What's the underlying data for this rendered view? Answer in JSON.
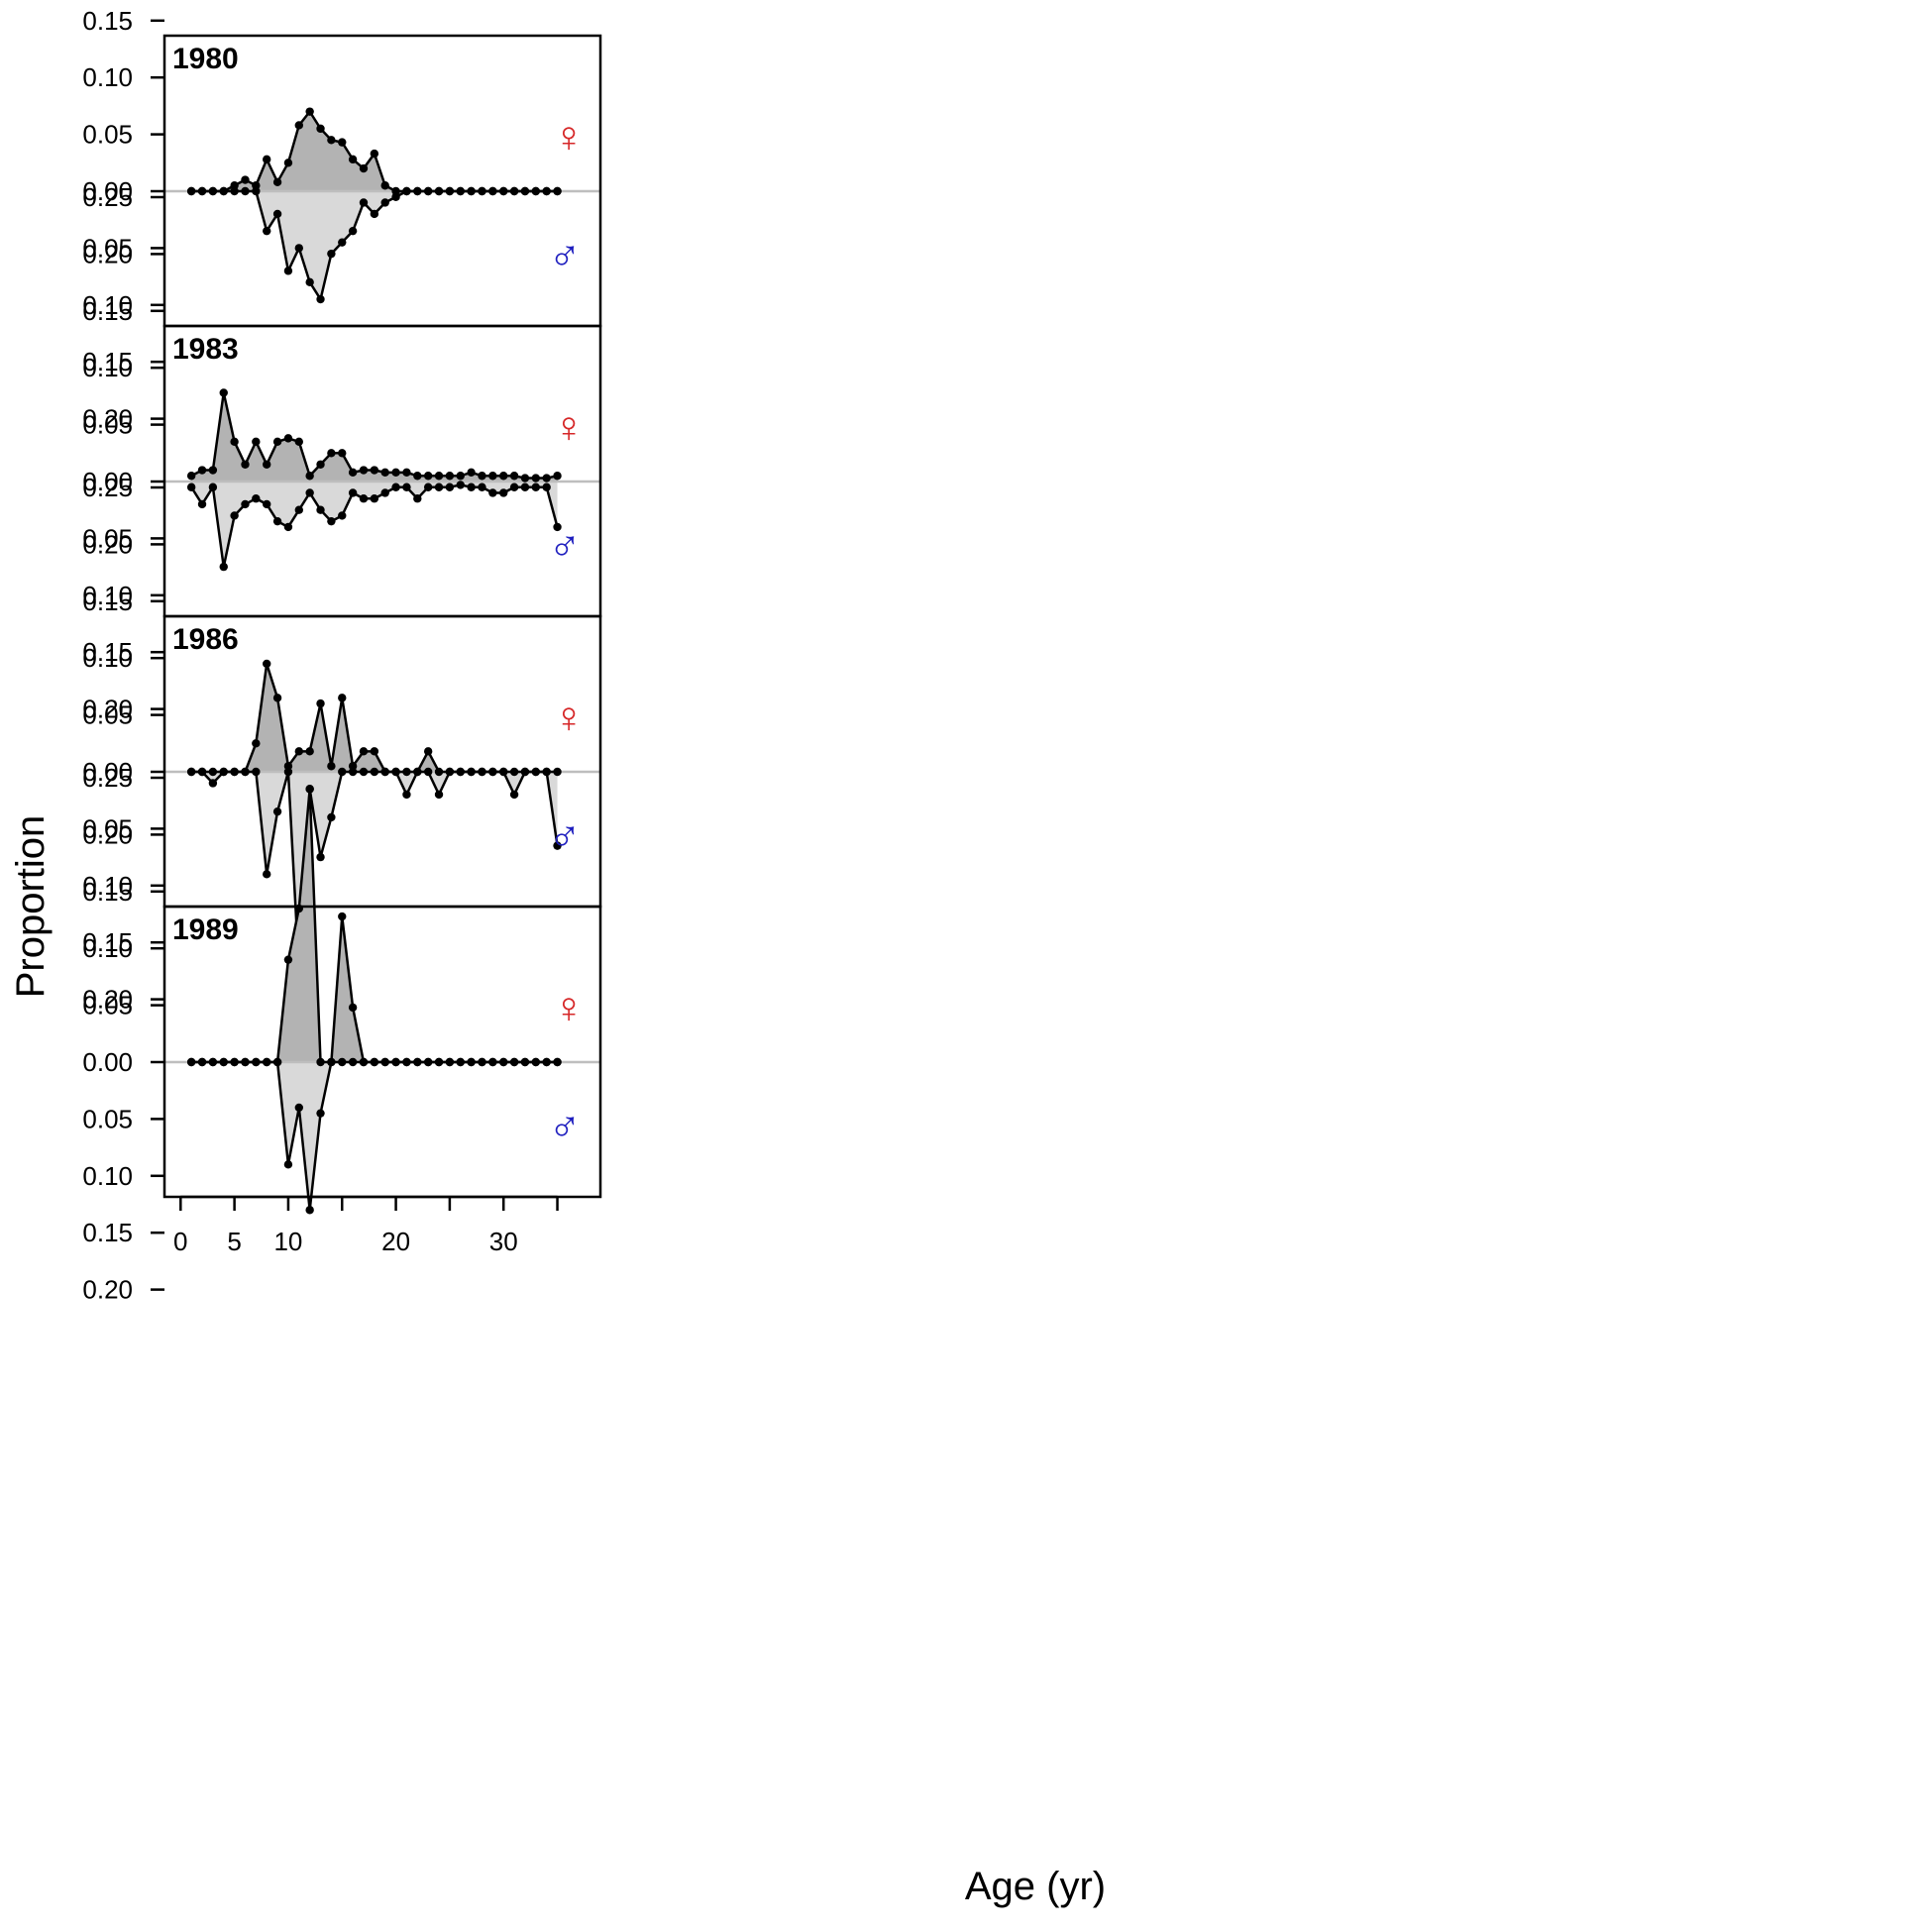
{
  "chart_data": {
    "type": "area",
    "layout": "stacked-panels, mirrored female (up) / male (down)",
    "xlabel": "Age (yr)",
    "ylabel": "Proportion",
    "x_ticks": [
      0,
      5,
      10,
      20,
      30
    ],
    "x_tick_labels": [
      "0",
      "5",
      "10",
      "20",
      "30"
    ],
    "xlim": [
      -1.5,
      39
    ],
    "female_ylim": [
      0,
      0.25
    ],
    "male_ylim": [
      0,
      0.2
    ],
    "y_ticks": [
      0.25,
      0.2,
      0.15,
      0.1,
      0.05,
      0.0,
      -0.05,
      -0.1,
      -0.15,
      -0.2
    ],
    "y_tick_labels": [
      "0.25",
      "0.20",
      "0.15",
      "0.10",
      "0.05",
      "0.00",
      "0.05",
      "0.10",
      "0.15",
      "0.20"
    ],
    "female_symbol": "♀",
    "male_symbol": "♂",
    "female_color": "#d62728",
    "male_color": "#1f1fbf",
    "female_fill": "#b3b3b3",
    "male_fill": "#d9d9d9",
    "zero_line_color": "#bebebe",
    "ages": [
      1,
      2,
      3,
      4,
      5,
      6,
      7,
      8,
      9,
      10,
      11,
      12,
      13,
      14,
      15,
      16,
      17,
      18,
      19,
      20,
      21,
      22,
      23,
      24,
      25,
      26,
      27,
      28,
      29,
      30,
      31,
      32,
      33,
      34,
      35
    ],
    "panels": [
      {
        "year": "1980",
        "female": [
          0,
          0,
          0,
          0,
          0.005,
          0.01,
          0.005,
          0.028,
          0.008,
          0.025,
          0.058,
          0.07,
          0.055,
          0.045,
          0.043,
          0.028,
          0.02,
          0.033,
          0.005,
          0,
          0,
          0,
          0,
          0,
          0,
          0,
          0,
          0,
          0,
          0,
          0,
          0,
          0,
          0,
          0
        ],
        "male": [
          0,
          0,
          0,
          0,
          0,
          0,
          0,
          0.035,
          0.02,
          0.07,
          0.05,
          0.08,
          0.095,
          0.055,
          0.045,
          0.035,
          0.01,
          0.02,
          0.01,
          0.005,
          0,
          0,
          0,
          0,
          0,
          0,
          0,
          0,
          0,
          0,
          0,
          0,
          0,
          0,
          0
        ]
      },
      {
        "year": "1983",
        "female": [
          0.005,
          0.01,
          0.01,
          0.078,
          0.035,
          0.015,
          0.035,
          0.015,
          0.035,
          0.038,
          0.035,
          0.005,
          0.015,
          0.025,
          0.025,
          0.008,
          0.01,
          0.01,
          0.008,
          0.008,
          0.008,
          0.005,
          0.005,
          0.005,
          0.005,
          0.005,
          0.008,
          0.005,
          0.005,
          0.005,
          0.005,
          0.003,
          0.003,
          0.003,
          0.005
        ],
        "male": [
          0.005,
          0.02,
          0.005,
          0.075,
          0.03,
          0.02,
          0.015,
          0.02,
          0.035,
          0.04,
          0.025,
          0.01,
          0.025,
          0.035,
          0.03,
          0.01,
          0.015,
          0.015,
          0.01,
          0.005,
          0.005,
          0.015,
          0.005,
          0.005,
          0.005,
          0.003,
          0.005,
          0.005,
          0.01,
          0.01,
          0.005,
          0.005,
          0.005,
          0.005,
          0.04
        ]
      },
      {
        "year": "1986",
        "female": [
          0,
          0,
          0,
          0,
          0,
          0,
          0.025,
          0.095,
          0.065,
          0.005,
          0.018,
          0.018,
          0.06,
          0.005,
          0.065,
          0.005,
          0.018,
          0.018,
          0,
          0,
          0,
          0,
          0.018,
          0,
          0,
          0,
          0,
          0,
          0,
          0,
          0,
          0,
          0,
          0,
          0
        ],
        "male": [
          0,
          0,
          0.01,
          0,
          0,
          0,
          0,
          0.09,
          0.035,
          0,
          0.175,
          0.015,
          0.075,
          0.04,
          0,
          0,
          0,
          0,
          0,
          0,
          0.02,
          0,
          0,
          0.02,
          0,
          0,
          0,
          0,
          0,
          0,
          0.02,
          0,
          0,
          0,
          0.065
        ]
      },
      {
        "year": "1989",
        "female": [
          0,
          0,
          0,
          0,
          0,
          0,
          0,
          0,
          0,
          0.09,
          0.135,
          0.24,
          0,
          0,
          0.128,
          0.048,
          0,
          0,
          0,
          0,
          0,
          0,
          0,
          0,
          0,
          0,
          0,
          0,
          0,
          0,
          0,
          0,
          0,
          0,
          0
        ],
        "male": [
          0,
          0,
          0,
          0,
          0,
          0,
          0,
          0,
          0,
          0.09,
          0.04,
          0.13,
          0.045,
          0,
          0,
          0,
          0,
          0,
          0,
          0,
          0,
          0,
          0,
          0,
          0,
          0,
          0,
          0,
          0,
          0,
          0,
          0,
          0,
          0,
          0
        ]
      }
    ]
  }
}
